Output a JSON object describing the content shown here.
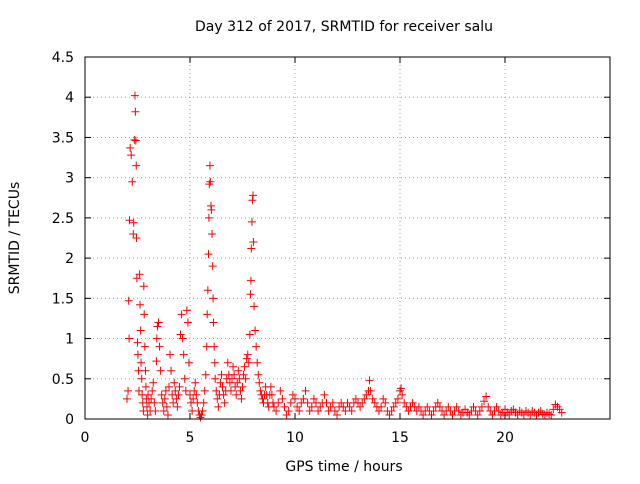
{
  "chart_data": {
    "type": "scatter",
    "title": "Day 312 of 2017, SRMTID for receiver salu",
    "xlabel": "GPS time / hours",
    "ylabel": "SRMTID / TECUs",
    "xlim": [
      0,
      25
    ],
    "ylim": [
      0,
      4.5
    ],
    "x_ticks": [
      0,
      5,
      10,
      15,
      20
    ],
    "x_tick_labels": [
      "0",
      "5",
      "10",
      "15",
      "20"
    ],
    "y_ticks": [
      0,
      0.5,
      1,
      1.5,
      2,
      2.5,
      3,
      3.5,
      4,
      4.5
    ],
    "y_tick_labels": [
      "0",
      "0.5",
      "1",
      "1.5",
      "2",
      "2.5",
      "3",
      "3.5",
      "4",
      "4.5"
    ],
    "grid": true,
    "marker": "+",
    "color": "#ff0000",
    "series": [
      {
        "name": "SRMTID",
        "points": [
          [
            2.0,
            0.25
          ],
          [
            2.05,
            0.35
          ],
          [
            2.08,
            1.47
          ],
          [
            2.1,
            1.0
          ],
          [
            2.12,
            2.47
          ],
          [
            2.15,
            3.37
          ],
          [
            2.2,
            3.28
          ],
          [
            2.25,
            2.95
          ],
          [
            2.3,
            2.3
          ],
          [
            2.32,
            2.44
          ],
          [
            2.35,
            3.47
          ],
          [
            2.38,
            4.02
          ],
          [
            2.4,
            3.82
          ],
          [
            2.42,
            3.46
          ],
          [
            2.44,
            3.15
          ],
          [
            2.45,
            2.25
          ],
          [
            2.47,
            1.75
          ],
          [
            2.5,
            0.95
          ],
          [
            2.52,
            0.8
          ],
          [
            2.55,
            0.6
          ],
          [
            2.57,
            0.35
          ],
          [
            2.6,
            1.8
          ],
          [
            2.62,
            1.42
          ],
          [
            2.65,
            1.1
          ],
          [
            2.67,
            0.7
          ],
          [
            2.7,
            0.5
          ],
          [
            2.72,
            0.3
          ],
          [
            2.75,
            0.2
          ],
          [
            2.78,
            0.1
          ],
          [
            2.8,
            1.65
          ],
          [
            2.82,
            1.3
          ],
          [
            2.85,
            0.9
          ],
          [
            2.88,
            0.6
          ],
          [
            2.9,
            0.4
          ],
          [
            2.92,
            0.25
          ],
          [
            2.95,
            0.15
          ],
          [
            2.98,
            0.05
          ],
          [
            3.0,
            0.3
          ],
          [
            3.05,
            0.2
          ],
          [
            3.1,
            0.1
          ],
          [
            3.15,
            0.25
          ],
          [
            3.2,
            0.35
          ],
          [
            3.25,
            0.45
          ],
          [
            3.3,
            0.2
          ],
          [
            3.35,
            0.1
          ],
          [
            3.4,
            0.72
          ],
          [
            3.42,
            1.0
          ],
          [
            3.45,
            1.15
          ],
          [
            3.5,
            1.2
          ],
          [
            3.55,
            0.9
          ],
          [
            3.6,
            0.6
          ],
          [
            3.65,
            0.3
          ],
          [
            3.7,
            0.2
          ],
          [
            3.75,
            0.1
          ],
          [
            3.8,
            0.25
          ],
          [
            3.85,
            0.35
          ],
          [
            3.9,
            0.15
          ],
          [
            3.95,
            0.05
          ],
          [
            4.0,
            0.4
          ],
          [
            4.05,
            0.8
          ],
          [
            4.1,
            0.6
          ],
          [
            4.15,
            0.3
          ],
          [
            4.2,
            0.2
          ],
          [
            4.25,
            0.45
          ],
          [
            4.3,
            0.35
          ],
          [
            4.35,
            0.25
          ],
          [
            4.4,
            0.15
          ],
          [
            4.45,
            0.3
          ],
          [
            4.5,
            0.4
          ],
          [
            4.55,
            1.05
          ],
          [
            4.6,
            1.3
          ],
          [
            4.65,
            1.0
          ],
          [
            4.7,
            0.8
          ],
          [
            4.75,
            0.5
          ],
          [
            4.8,
            0.35
          ],
          [
            4.85,
            1.35
          ],
          [
            4.9,
            1.2
          ],
          [
            4.95,
            0.7
          ],
          [
            5.0,
            0.3
          ],
          [
            5.05,
            0.2
          ],
          [
            5.1,
            0.1
          ],
          [
            5.15,
            0.25
          ],
          [
            5.2,
            0.35
          ],
          [
            5.25,
            0.45
          ],
          [
            5.3,
            0.3
          ],
          [
            5.35,
            0.2
          ],
          [
            5.4,
            0.1
          ],
          [
            5.45,
            0.05
          ],
          [
            5.5,
            0.02
          ],
          [
            5.55,
            0.05
          ],
          [
            5.6,
            0.1
          ],
          [
            5.65,
            0.2
          ],
          [
            5.7,
            0.35
          ],
          [
            5.75,
            0.55
          ],
          [
            5.8,
            0.9
          ],
          [
            5.82,
            1.3
          ],
          [
            5.85,
            1.6
          ],
          [
            5.88,
            2.05
          ],
          [
            5.9,
            2.5
          ],
          [
            5.92,
            2.92
          ],
          [
            5.95,
            3.15
          ],
          [
            5.97,
            2.95
          ],
          [
            6.0,
            2.65
          ],
          [
            6.02,
            2.6
          ],
          [
            6.05,
            2.3
          ],
          [
            6.08,
            1.9
          ],
          [
            6.1,
            1.5
          ],
          [
            6.12,
            1.2
          ],
          [
            6.15,
            0.9
          ],
          [
            6.18,
            0.7
          ],
          [
            6.2,
            0.5
          ],
          [
            6.25,
            0.35
          ],
          [
            6.3,
            0.25
          ],
          [
            6.35,
            0.15
          ],
          [
            6.4,
            0.3
          ],
          [
            6.45,
            0.45
          ],
          [
            6.5,
            0.55
          ],
          [
            6.55,
            0.4
          ],
          [
            6.6,
            0.3
          ],
          [
            6.65,
            0.2
          ],
          [
            6.7,
            0.35
          ],
          [
            6.75,
            0.5
          ],
          [
            6.8,
            0.7
          ],
          [
            6.85,
            0.55
          ],
          [
            6.9,
            0.45
          ],
          [
            6.95,
            0.35
          ],
          [
            7.0,
            0.5
          ],
          [
            7.05,
            0.65
          ],
          [
            7.1,
            0.55
          ],
          [
            7.15,
            0.4
          ],
          [
            7.2,
            0.3
          ],
          [
            7.25,
            0.45
          ],
          [
            7.3,
            0.6
          ],
          [
            7.35,
            0.5
          ],
          [
            7.4,
            0.35
          ],
          [
            7.45,
            0.25
          ],
          [
            7.5,
            0.4
          ],
          [
            7.55,
            0.55
          ],
          [
            7.6,
            0.65
          ],
          [
            7.65,
            0.5
          ],
          [
            7.7,
            0.75
          ],
          [
            7.75,
            0.8
          ],
          [
            7.8,
            0.7
          ],
          [
            7.85,
            1.05
          ],
          [
            7.88,
            1.55
          ],
          [
            7.9,
            1.72
          ],
          [
            7.92,
            2.12
          ],
          [
            7.95,
            2.45
          ],
          [
            7.97,
            2.72
          ],
          [
            8.0,
            2.78
          ],
          [
            8.02,
            2.2
          ],
          [
            8.05,
            1.4
          ],
          [
            8.1,
            1.1
          ],
          [
            8.15,
            0.9
          ],
          [
            8.2,
            0.7
          ],
          [
            8.25,
            0.55
          ],
          [
            8.3,
            0.45
          ],
          [
            8.35,
            0.35
          ],
          [
            8.4,
            0.3
          ],
          [
            8.45,
            0.25
          ],
          [
            8.5,
            0.2
          ],
          [
            8.55,
            0.3
          ],
          [
            8.6,
            0.4
          ],
          [
            8.65,
            0.3
          ],
          [
            8.7,
            0.2
          ],
          [
            8.75,
            0.15
          ],
          [
            8.8,
            0.3
          ],
          [
            8.85,
            0.4
          ],
          [
            8.9,
            0.3
          ],
          [
            8.95,
            0.2
          ],
          [
            9.0,
            0.15
          ],
          [
            9.1,
            0.1
          ],
          [
            9.2,
            0.2
          ],
          [
            9.3,
            0.35
          ],
          [
            9.4,
            0.25
          ],
          [
            9.5,
            0.15
          ],
          [
            9.6,
            0.05
          ],
          [
            9.7,
            0.1
          ],
          [
            9.8,
            0.2
          ],
          [
            9.9,
            0.3
          ],
          [
            10.0,
            0.25
          ],
          [
            10.1,
            0.15
          ],
          [
            10.2,
            0.1
          ],
          [
            10.3,
            0.2
          ],
          [
            10.4,
            0.25
          ],
          [
            10.5,
            0.35
          ],
          [
            10.6,
            0.2
          ],
          [
            10.7,
            0.1
          ],
          [
            10.8,
            0.15
          ],
          [
            10.9,
            0.25
          ],
          [
            11.0,
            0.2
          ],
          [
            11.1,
            0.1
          ],
          [
            11.2,
            0.15
          ],
          [
            11.3,
            0.2
          ],
          [
            11.4,
            0.3
          ],
          [
            11.5,
            0.2
          ],
          [
            11.6,
            0.1
          ],
          [
            11.7,
            0.15
          ],
          [
            11.8,
            0.2
          ],
          [
            11.9,
            0.1
          ],
          [
            12.0,
            0.05
          ],
          [
            12.1,
            0.15
          ],
          [
            12.2,
            0.2
          ],
          [
            12.3,
            0.15
          ],
          [
            12.4,
            0.1
          ],
          [
            12.5,
            0.2
          ],
          [
            12.6,
            0.15
          ],
          [
            12.7,
            0.1
          ],
          [
            12.8,
            0.2
          ],
          [
            12.9,
            0.25
          ],
          [
            13.0,
            0.2
          ],
          [
            13.1,
            0.15
          ],
          [
            13.2,
            0.2
          ],
          [
            13.3,
            0.25
          ],
          [
            13.4,
            0.3
          ],
          [
            13.5,
            0.35
          ],
          [
            13.55,
            0.48
          ],
          [
            13.6,
            0.35
          ],
          [
            13.7,
            0.25
          ],
          [
            13.8,
            0.2
          ],
          [
            13.9,
            0.15
          ],
          [
            14.0,
            0.1
          ],
          [
            14.1,
            0.15
          ],
          [
            14.2,
            0.25
          ],
          [
            14.3,
            0.2
          ],
          [
            14.4,
            0.1
          ],
          [
            14.5,
            0.05
          ],
          [
            14.6,
            0.1
          ],
          [
            14.7,
            0.15
          ],
          [
            14.8,
            0.2
          ],
          [
            14.9,
            0.25
          ],
          [
            15.0,
            0.35
          ],
          [
            15.05,
            0.38
          ],
          [
            15.1,
            0.3
          ],
          [
            15.2,
            0.2
          ],
          [
            15.3,
            0.15
          ],
          [
            15.4,
            0.1
          ],
          [
            15.5,
            0.15
          ],
          [
            15.6,
            0.2
          ],
          [
            15.7,
            0.15
          ],
          [
            15.8,
            0.1
          ],
          [
            15.9,
            0.15
          ],
          [
            16.0,
            0.1
          ],
          [
            16.1,
            0.05
          ],
          [
            16.2,
            0.1
          ],
          [
            16.3,
            0.15
          ],
          [
            16.4,
            0.1
          ],
          [
            16.5,
            0.05
          ],
          [
            16.6,
            0.1
          ],
          [
            16.7,
            0.15
          ],
          [
            16.8,
            0.2
          ],
          [
            16.9,
            0.15
          ],
          [
            17.0,
            0.1
          ],
          [
            17.1,
            0.05
          ],
          [
            17.2,
            0.1
          ],
          [
            17.3,
            0.15
          ],
          [
            17.4,
            0.1
          ],
          [
            17.5,
            0.05
          ],
          [
            17.6,
            0.1
          ],
          [
            17.7,
            0.15
          ],
          [
            17.8,
            0.1
          ],
          [
            17.9,
            0.05
          ],
          [
            18.0,
            0.08
          ],
          [
            18.1,
            0.12
          ],
          [
            18.2,
            0.08
          ],
          [
            18.3,
            0.05
          ],
          [
            18.4,
            0.1
          ],
          [
            18.5,
            0.15
          ],
          [
            18.6,
            0.1
          ],
          [
            18.7,
            0.05
          ],
          [
            18.8,
            0.1
          ],
          [
            18.9,
            0.15
          ],
          [
            19.0,
            0.22
          ],
          [
            19.1,
            0.28
          ],
          [
            19.2,
            0.15
          ],
          [
            19.3,
            0.1
          ],
          [
            19.4,
            0.05
          ],
          [
            19.5,
            0.1
          ],
          [
            19.6,
            0.15
          ],
          [
            19.7,
            0.1
          ],
          [
            19.8,
            0.05
          ],
          [
            19.9,
            0.08
          ],
          [
            20.0,
            0.12
          ],
          [
            20.1,
            0.08
          ],
          [
            20.2,
            0.05
          ],
          [
            20.3,
            0.1
          ],
          [
            20.4,
            0.12
          ],
          [
            20.5,
            0.08
          ],
          [
            20.6,
            0.05
          ],
          [
            20.7,
            0.1
          ],
          [
            20.8,
            0.08
          ],
          [
            20.9,
            0.05
          ],
          [
            21.0,
            0.1
          ],
          [
            21.1,
            0.08
          ],
          [
            21.2,
            0.05
          ],
          [
            21.3,
            0.1
          ],
          [
            21.4,
            0.08
          ],
          [
            21.5,
            0.05
          ],
          [
            21.6,
            0.08
          ],
          [
            21.7,
            0.1
          ],
          [
            21.8,
            0.06
          ],
          [
            21.9,
            0.05
          ],
          [
            22.0,
            0.08
          ],
          [
            22.1,
            0.06
          ],
          [
            22.2,
            0.05
          ],
          [
            22.3,
            0.12
          ],
          [
            22.4,
            0.18
          ],
          [
            22.5,
            0.15
          ],
          [
            22.6,
            0.12
          ],
          [
            22.7,
            0.08
          ]
        ]
      }
    ]
  }
}
